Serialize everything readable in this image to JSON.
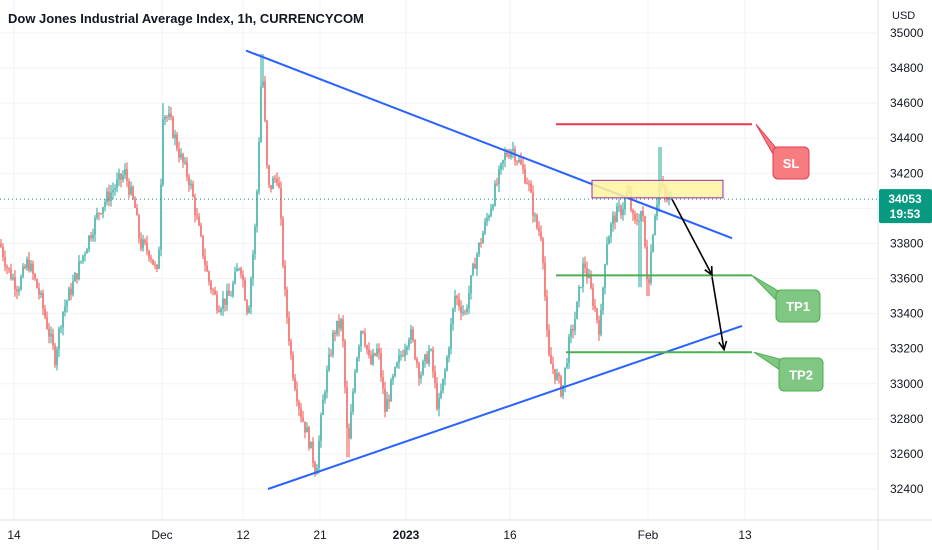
{
  "chart_data": {
    "type": "candlestick",
    "title": "Dow Jones Industrial Average Index, 1h, CURRENCYCOM",
    "currency": "USD",
    "y_ticks": [
      32400,
      32600,
      32800,
      33000,
      33200,
      33400,
      33600,
      33800,
      34000,
      34200,
      34400,
      34600,
      34800,
      35000
    ],
    "ylim": [
      32300,
      35050
    ],
    "x_ticks": [
      {
        "label": "14",
        "bold": false
      },
      {
        "label": "Dec",
        "bold": false
      },
      {
        "label": "12",
        "bold": false
      },
      {
        "label": "21",
        "bold": false
      },
      {
        "label": "2023",
        "bold": true
      },
      {
        "label": "16",
        "bold": false
      },
      {
        "label": "Feb",
        "bold": false
      },
      {
        "label": "13",
        "bold": false
      }
    ],
    "last_price": "34053",
    "countdown": "19:53",
    "price_path": [
      [
        0,
        33800
      ],
      [
        8,
        33650
      ],
      [
        18,
        33550
      ],
      [
        28,
        33700
      ],
      [
        40,
        33500
      ],
      [
        55,
        33150
      ],
      [
        62,
        33400
      ],
      [
        75,
        33600
      ],
      [
        90,
        33850
      ],
      [
        100,
        34000
      ],
      [
        112,
        34100
      ],
      [
        125,
        34200
      ],
      [
        135,
        34000
      ],
      [
        140,
        33800
      ],
      [
        150,
        33750
      ],
      [
        158,
        33600
      ],
      [
        163,
        34550
      ],
      [
        170,
        34500
      ],
      [
        180,
        34300
      ],
      [
        190,
        34150
      ],
      [
        198,
        33900
      ],
      [
        208,
        33600
      ],
      [
        218,
        33450
      ],
      [
        230,
        33500
      ],
      [
        240,
        33700
      ],
      [
        248,
        33400
      ],
      [
        256,
        33950
      ],
      [
        262,
        34850
      ],
      [
        268,
        34100
      ],
      [
        278,
        34200
      ],
      [
        285,
        33500
      ],
      [
        292,
        33100
      ],
      [
        300,
        32850
      ],
      [
        308,
        32700
      ],
      [
        316,
        32500
      ],
      [
        324,
        32950
      ],
      [
        334,
        33300
      ],
      [
        342,
        33350
      ],
      [
        348,
        32600
      ],
      [
        355,
        33100
      ],
      [
        362,
        33350
      ],
      [
        370,
        33100
      ],
      [
        378,
        33200
      ],
      [
        385,
        32850
      ],
      [
        392,
        33000
      ],
      [
        400,
        33150
      ],
      [
        410,
        33300
      ],
      [
        420,
        33050
      ],
      [
        430,
        33200
      ],
      [
        438,
        32850
      ],
      [
        446,
        33100
      ],
      [
        455,
        33500
      ],
      [
        465,
        33400
      ],
      [
        475,
        33700
      ],
      [
        485,
        33900
      ],
      [
        495,
        34100
      ],
      [
        505,
        34300
      ],
      [
        512,
        34350
      ],
      [
        520,
        34250
      ],
      [
        528,
        34150
      ],
      [
        536,
        33900
      ],
      [
        542,
        33850
      ],
      [
        548,
        33150
      ],
      [
        556,
        33050
      ],
      [
        562,
        32950
      ],
      [
        568,
        33200
      ],
      [
        576,
        33400
      ],
      [
        584,
        33700
      ],
      [
        592,
        33500
      ],
      [
        600,
        33300
      ],
      [
        606,
        33800
      ],
      [
        614,
        33950
      ],
      [
        622,
        34000
      ],
      [
        628,
        34100
      ],
      [
        634,
        33900
      ],
      [
        642,
        34000
      ],
      [
        648,
        33550
      ],
      [
        654,
        33950
      ],
      [
        660,
        34150
      ],
      [
        666,
        34050
      ],
      [
        672,
        34053
      ]
    ],
    "annotations": [
      {
        "type": "trendline",
        "name": "descending-resistance",
        "color": "#2962ff",
        "points": [
          [
            246,
            34900
          ],
          [
            732,
            33830
          ]
        ]
      },
      {
        "type": "trendline",
        "name": "ascending-support",
        "color": "#2962ff",
        "points": [
          [
            268,
            32400
          ],
          [
            742,
            33330
          ]
        ]
      },
      {
        "type": "hline",
        "name": "stop-loss-level",
        "color": "#e53950",
        "price": 34480,
        "x0": 556,
        "x1": 752
      },
      {
        "type": "hline",
        "name": "take-profit-1-level",
        "color": "#4caf50",
        "price": 33618,
        "x0": 556,
        "x1": 752
      },
      {
        "type": "hline",
        "name": "take-profit-2-level",
        "color": "#4caf50",
        "price": 33180,
        "x0": 566,
        "x1": 752
      },
      {
        "type": "rect",
        "name": "entry-zone",
        "fill": "#fff59d",
        "stroke": "#9c27b0",
        "y0": 34160,
        "y1": 34060,
        "x0": 592,
        "x1": 723
      }
    ],
    "callouts": [
      {
        "label": "SL",
        "bg": "#f77c80",
        "border": "#e53950",
        "pointer_price": 34480
      },
      {
        "label": "TP1",
        "bg": "#81c784",
        "border": "#4caf50",
        "pointer_price": 33618
      },
      {
        "label": "TP2",
        "bg": "#81c784",
        "border": "#4caf50",
        "pointer_price": 33180
      }
    ],
    "colors": {
      "up": "#26a69a",
      "down": "#ef5350",
      "price_tag": "#089981",
      "grid": "#f0f3fa"
    }
  }
}
